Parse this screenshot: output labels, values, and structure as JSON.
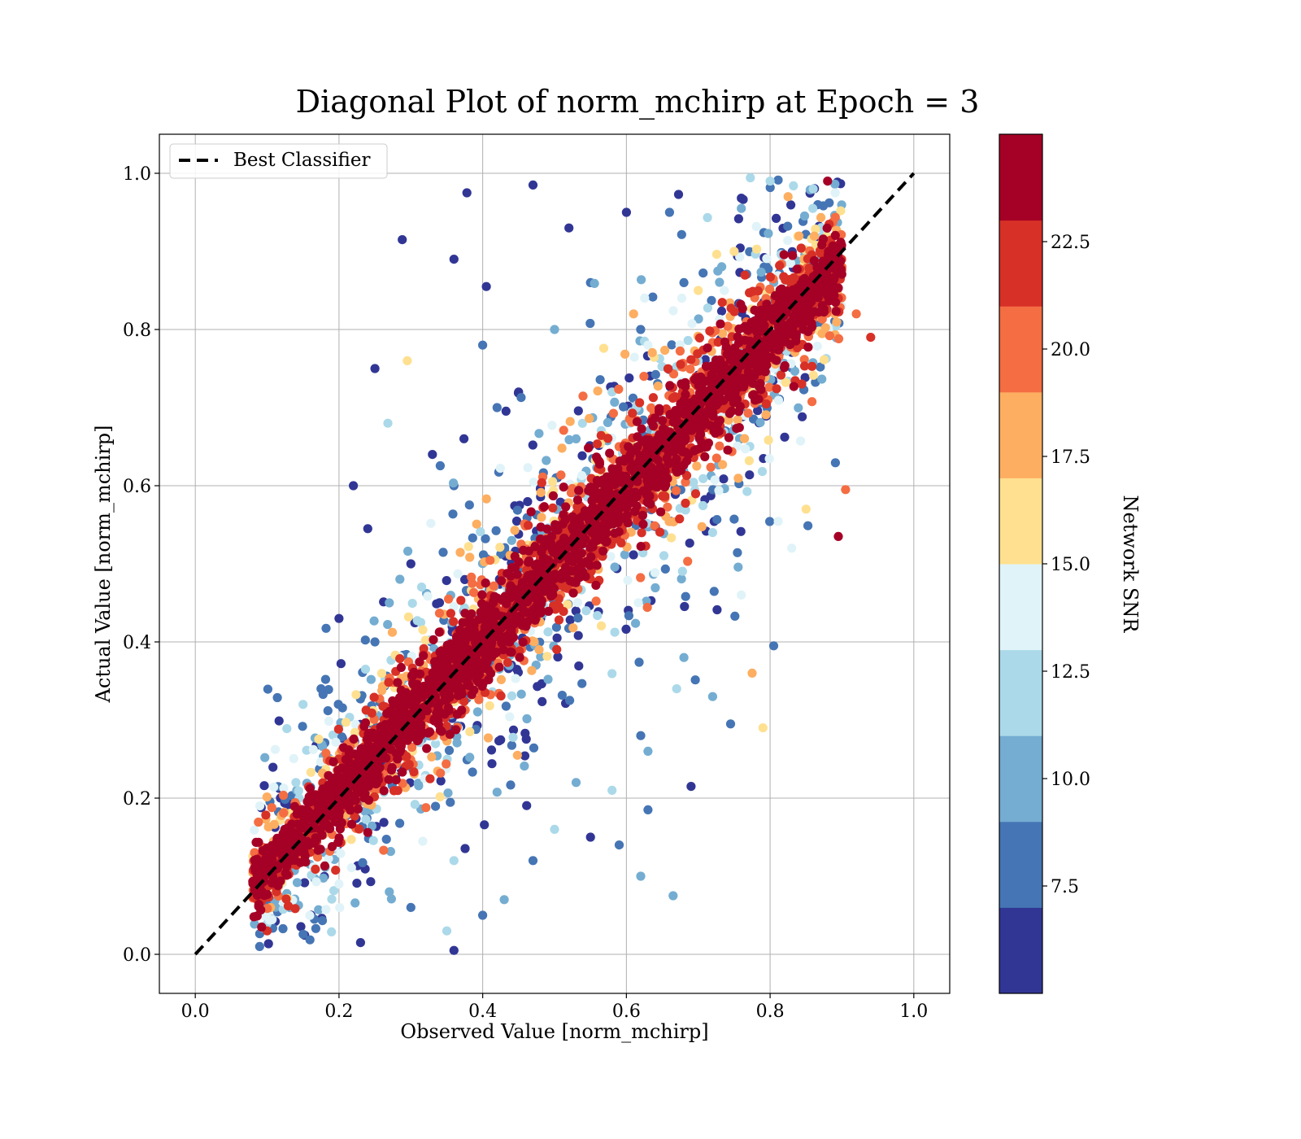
{
  "chart_data": {
    "type": "scatter",
    "title": "Diagonal Plot of norm_mchirp at Epoch = 3",
    "xlabel": "Observed Value [norm_mchirp]",
    "ylabel": "Actual Value [norm_mchirp]",
    "xlim": [
      -0.05,
      1.05
    ],
    "ylim": [
      -0.05,
      1.05
    ],
    "xticks": [
      "0.0",
      "0.2",
      "0.4",
      "0.6",
      "0.8",
      "1.0"
    ],
    "yticks": [
      "0.0",
      "0.2",
      "0.4",
      "0.6",
      "0.8",
      "1.0"
    ],
    "xtick_values": [
      0.0,
      0.2,
      0.4,
      0.6,
      0.8,
      1.0
    ],
    "ytick_values": [
      0.0,
      0.2,
      0.4,
      0.6,
      0.8,
      1.0
    ],
    "grid": true,
    "legend": {
      "placement": "top-left",
      "entries": [
        {
          "label": "Best Classifier",
          "style": "dashed",
          "color": "#000000"
        }
      ]
    },
    "reference_line": {
      "name": "Best Classifier",
      "x": [
        0.0,
        1.0
      ],
      "y": [
        0.0,
        1.0
      ]
    },
    "colorbar": {
      "label": "Network SNR",
      "range": [
        5.0,
        25.0
      ],
      "ticks": [
        "7.5",
        "10.0",
        "12.5",
        "15.0",
        "17.5",
        "20.0",
        "22.5"
      ],
      "tick_values": [
        7.5,
        10.0,
        12.5,
        15.0,
        17.5,
        20.0,
        22.5
      ],
      "colors": [
        "#313695",
        "#4575b4",
        "#74add1",
        "#abd9e9",
        "#e0f3f8",
        "#fee090",
        "#fdae61",
        "#f46d43",
        "#d73027",
        "#a50026"
      ]
    },
    "points": [
      [
        0.288,
        0.915,
        5.5
      ],
      [
        0.378,
        0.975,
        6.0
      ],
      [
        0.47,
        0.985,
        5.8
      ],
      [
        0.52,
        0.93,
        6.2
      ],
      [
        0.36,
        0.89,
        5.5
      ],
      [
        0.405,
        0.855,
        6.0
      ],
      [
        0.25,
        0.75,
        5.7
      ],
      [
        0.22,
        0.6,
        5.5
      ],
      [
        0.268,
        0.68,
        11.5
      ],
      [
        0.295,
        0.76,
        16.5
      ],
      [
        0.24,
        0.545,
        6.1
      ],
      [
        0.2,
        0.43,
        6.4
      ],
      [
        0.175,
        0.34,
        7.0
      ],
      [
        0.15,
        0.32,
        11.5
      ],
      [
        0.55,
        0.15,
        6.5
      ],
      [
        0.62,
        0.1,
        9.5
      ],
      [
        0.665,
        0.075,
        9.0
      ],
      [
        0.59,
        0.14,
        7.0
      ],
      [
        0.63,
        0.185,
        7.0
      ],
      [
        0.79,
        0.29,
        16.5
      ],
      [
        0.805,
        0.395,
        7.5
      ],
      [
        0.775,
        0.36,
        17.5
      ],
      [
        0.745,
        0.295,
        7.0
      ],
      [
        0.69,
        0.215,
        6.5
      ],
      [
        0.36,
        0.005,
        5.5
      ],
      [
        0.23,
        0.015,
        6.0
      ],
      [
        0.905,
        0.595,
        19.0
      ],
      [
        0.895,
        0.535,
        23.0
      ],
      [
        0.88,
        0.99,
        24.0
      ],
      [
        0.8,
        0.99,
        11.0
      ],
      [
        0.61,
        0.82,
        17.0
      ],
      [
        0.68,
        0.86,
        8.5
      ],
      [
        0.45,
        0.72,
        6.2
      ],
      [
        0.33,
        0.64,
        6.3
      ],
      [
        0.53,
        0.66,
        9.0
      ],
      [
        0.72,
        0.54,
        11.0
      ],
      [
        0.68,
        0.38,
        10.5
      ],
      [
        0.62,
        0.28,
        8.5
      ],
      [
        0.53,
        0.22,
        9.5
      ],
      [
        0.47,
        0.12,
        7.0
      ],
      [
        0.36,
        0.12,
        11.5
      ],
      [
        0.3,
        0.06,
        8.5
      ],
      [
        0.14,
        0.22,
        12.0
      ],
      [
        0.12,
        0.17,
        14.0
      ],
      [
        0.085,
        0.1,
        17.5
      ],
      [
        0.1,
        0.03,
        22.0
      ],
      [
        0.6,
        0.95,
        6.0
      ],
      [
        0.66,
        0.95,
        7.0
      ],
      [
        0.76,
        0.955,
        9.5
      ],
      [
        0.86,
        0.98,
        12.5
      ],
      [
        0.9,
        0.88,
        20.0
      ],
      [
        0.92,
        0.82,
        19.0
      ],
      [
        0.94,
        0.79,
        22.0
      ],
      [
        0.83,
        0.52,
        13.0
      ],
      [
        0.85,
        0.57,
        16.0
      ],
      [
        0.76,
        0.46,
        14.0
      ],
      [
        0.72,
        0.33,
        9.0
      ],
      [
        0.67,
        0.34,
        12.0
      ],
      [
        0.63,
        0.26,
        10.0
      ],
      [
        0.58,
        0.21,
        12.0
      ],
      [
        0.5,
        0.16,
        11.0
      ],
      [
        0.43,
        0.07,
        10.0
      ],
      [
        0.4,
        0.05,
        8.0
      ],
      [
        0.35,
        0.03,
        12.0
      ],
      [
        0.27,
        0.08,
        9.0
      ],
      [
        0.2,
        0.09,
        13.0
      ],
      [
        0.4,
        0.78,
        8.0
      ],
      [
        0.42,
        0.7,
        7.5
      ],
      [
        0.36,
        0.6,
        8.0
      ],
      [
        0.3,
        0.5,
        6.5
      ],
      [
        0.27,
        0.45,
        9.0
      ],
      [
        0.25,
        0.4,
        7.0
      ],
      [
        0.5,
        0.8,
        10.0
      ],
      [
        0.55,
        0.86,
        8.0
      ],
      [
        0.58,
        0.72,
        12.0
      ],
      [
        0.63,
        0.78,
        14.5
      ],
      [
        0.7,
        0.85,
        16.0
      ],
      [
        0.75,
        0.9,
        15.5
      ]
    ],
    "core_band": {
      "x_range": [
        0.08,
        0.9
      ],
      "note": "dense high-SNR band along y = 0.98x + 0.01"
    }
  }
}
